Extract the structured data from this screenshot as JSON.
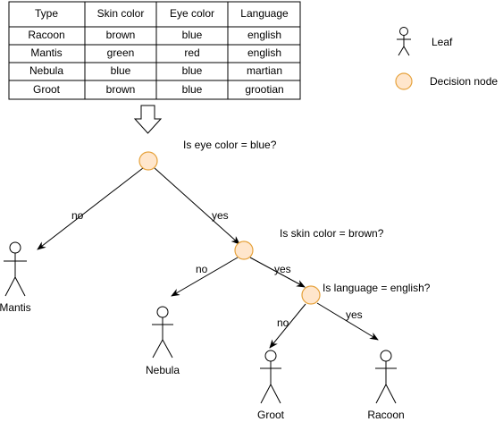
{
  "table": {
    "headers": [
      "Type",
      "Skin color",
      "Eye color",
      "Language"
    ],
    "rows": [
      [
        "Racoon",
        "brown",
        "blue",
        "english"
      ],
      [
        "Mantis",
        "green",
        "red",
        "english"
      ],
      [
        "Nebula",
        "blue",
        "blue",
        "martian"
      ],
      [
        "Groot",
        "brown",
        "blue",
        "grootian"
      ]
    ]
  },
  "legend": {
    "leaf_label": "Leaf",
    "decision_label": "Decision node"
  },
  "tree": {
    "q1": "Is eye color = blue?",
    "q2": "Is skin color = brown?",
    "q3": "Is language = english?",
    "edge_no_1": "no",
    "edge_yes_1": "yes",
    "edge_no_2": "no",
    "edge_yes_2": "yes",
    "edge_no_3": "no",
    "edge_yes_3": "yes",
    "leaf_mantis": "Mantis",
    "leaf_nebula": "Nebula",
    "leaf_groot": "Groot",
    "leaf_racoon": "Racoon"
  },
  "colors": {
    "node_fill": "#ffe6cc",
    "node_stroke": "#e6a23c"
  }
}
